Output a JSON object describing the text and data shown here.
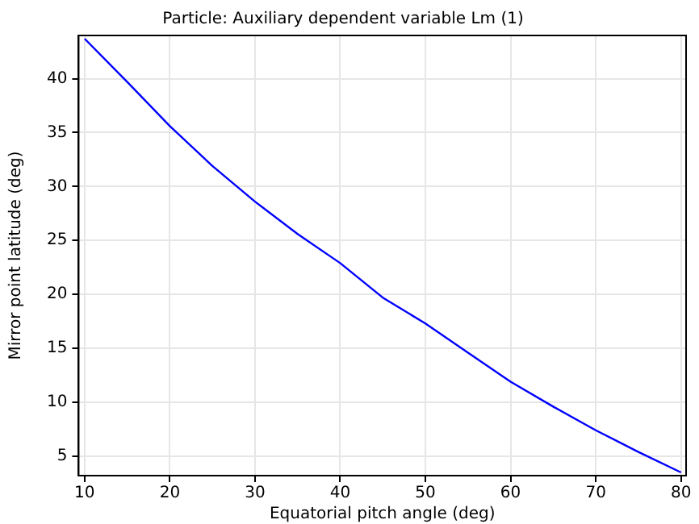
{
  "chart_data": {
    "type": "line",
    "title": "Particle: Auxiliary dependent variable Lm (1)",
    "xlabel": "Equatorial pitch angle (deg)",
    "ylabel": "Mirror point latitude (deg)",
    "x": [
      10,
      15,
      20,
      25,
      30,
      35,
      40,
      45,
      50,
      55,
      60,
      65,
      70,
      75,
      80
    ],
    "series": [
      {
        "color": "#0000ff",
        "values": [
          43.7,
          39.7,
          35.6,
          31.9,
          28.6,
          25.6,
          22.9,
          19.7,
          17.3,
          14.6,
          11.9,
          9.6,
          7.4,
          5.4,
          3.5
        ]
      }
    ],
    "xlim": [
      9.3,
      80.6
    ],
    "xticks": [
      10,
      20,
      30,
      40,
      50,
      60,
      70,
      80
    ],
    "ylim": [
      3.2,
      44
    ],
    "yticks": [
      5,
      10,
      15,
      20,
      25,
      30,
      35,
      40
    ],
    "grid": true,
    "marker": "none",
    "line_style": "solid"
  }
}
